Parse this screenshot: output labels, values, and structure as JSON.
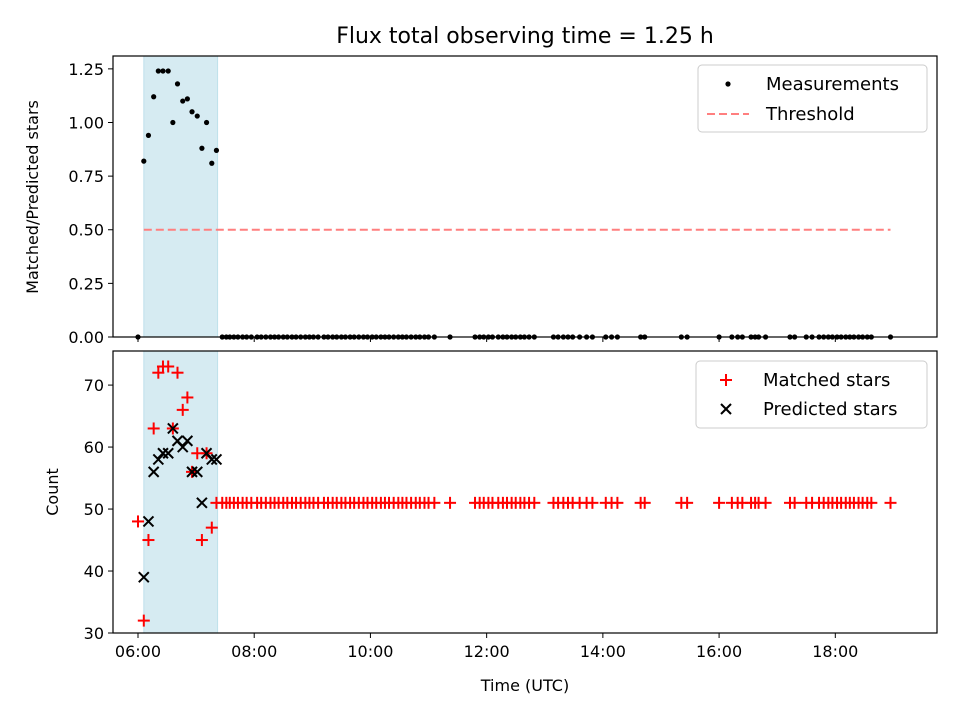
{
  "chart_data": [
    {
      "type": "scatter",
      "title": "Flux total observing time = 1.25 h",
      "xlabel": "",
      "ylabel": "Matched/Predicted stars",
      "xlim_hours": [
        5.57,
        19.75
      ],
      "ylim": [
        0.0,
        1.31
      ],
      "yticks": [
        "0.00",
        "0.25",
        "0.50",
        "0.75",
        "1.00",
        "1.25"
      ],
      "xtick_hours": [
        6,
        8,
        10,
        12,
        14,
        16,
        18
      ],
      "shaded_region_hours": [
        6.1,
        7.37
      ],
      "legend_position": "top-right",
      "series": [
        {
          "name": "Measurements",
          "marker": "dot",
          "color": "#000000",
          "x_hours": [
            6.0,
            6.1,
            6.18,
            6.27,
            6.35,
            6.43,
            6.52,
            6.6,
            6.68,
            6.77,
            6.85,
            6.93,
            7.02,
            7.1,
            7.18,
            7.27,
            7.35,
            7.45,
            7.52,
            7.58,
            7.65,
            7.72,
            7.8,
            7.87,
            7.95,
            8.05,
            8.12,
            8.2,
            8.28,
            8.35,
            8.42,
            8.5,
            8.57,
            8.65,
            8.72,
            8.8,
            8.88,
            8.95,
            9.02,
            9.1,
            9.2,
            9.27,
            9.35,
            9.42,
            9.5,
            9.57,
            9.65,
            9.72,
            9.8,
            9.88,
            9.95,
            10.03,
            10.1,
            10.18,
            10.25,
            10.32,
            10.4,
            10.48,
            10.55,
            10.62,
            10.7,
            10.78,
            10.85,
            10.93,
            11.0,
            11.1,
            11.37,
            11.8,
            11.88,
            11.95,
            12.03,
            12.1,
            12.2,
            12.28,
            12.35,
            12.43,
            12.5,
            12.58,
            12.65,
            12.73,
            12.82,
            13.15,
            13.23,
            13.32,
            13.4,
            13.48,
            13.6,
            13.72,
            13.82,
            14.05,
            14.15,
            14.25,
            14.65,
            14.72,
            15.35,
            15.45,
            16.0,
            16.22,
            16.32,
            16.4,
            16.55,
            16.62,
            16.68,
            16.8,
            17.22,
            17.3,
            17.5,
            17.6,
            17.72,
            17.8,
            17.88,
            17.95,
            18.03,
            18.1,
            18.18,
            18.25,
            18.32,
            18.4,
            18.47,
            18.55,
            18.62,
            18.95
          ],
          "y": [
            0.0,
            0.82,
            0.94,
            1.12,
            1.24,
            1.24,
            1.24,
            1.0,
            1.18,
            1.1,
            1.11,
            1.05,
            1.03,
            0.88,
            1.0,
            0.81,
            0.87,
            0,
            0,
            0,
            0,
            0,
            0,
            0,
            0,
            0,
            0,
            0,
            0,
            0,
            0,
            0,
            0,
            0,
            0,
            0,
            0,
            0,
            0,
            0,
            0,
            0,
            0,
            0,
            0,
            0,
            0,
            0,
            0,
            0,
            0,
            0,
            0,
            0,
            0,
            0,
            0,
            0,
            0,
            0,
            0,
            0,
            0,
            0,
            0,
            0,
            0,
            0,
            0,
            0,
            0,
            0,
            0,
            0,
            0,
            0,
            0,
            0,
            0,
            0,
            0,
            0,
            0,
            0,
            0,
            0,
            0,
            0,
            0,
            0,
            0,
            0,
            0,
            0,
            0,
            0,
            0,
            0,
            0,
            0,
            0,
            0,
            0,
            0,
            0,
            0,
            0,
            0,
            0,
            0,
            0,
            0,
            0,
            0,
            0,
            0,
            0,
            0,
            0,
            0,
            0,
            0
          ]
        },
        {
          "name": "Threshold",
          "marker": "dashed-line",
          "color": "#ff7f7f",
          "x_hours": [
            6.1,
            18.95
          ],
          "y": [
            0.5,
            0.5
          ]
        }
      ]
    },
    {
      "type": "scatter",
      "title": "",
      "xlabel": "Time (UTC)",
      "ylabel": "Count",
      "xlim_hours": [
        5.57,
        19.75
      ],
      "ylim": [
        30,
        75.5
      ],
      "yticks": [
        "30",
        "40",
        "50",
        "60",
        "70"
      ],
      "xtick_hours": [
        6,
        8,
        10,
        12,
        14,
        16,
        18
      ],
      "xtick_labels": [
        "06:00",
        "08:00",
        "10:00",
        "12:00",
        "14:00",
        "16:00",
        "18:00"
      ],
      "shaded_region_hours": [
        6.1,
        7.37
      ],
      "legend_position": "top-right",
      "series": [
        {
          "name": "Matched stars",
          "marker": "plus",
          "color": "#ff0000",
          "x_hours": [
            6.0,
            6.1,
            6.18,
            6.27,
            6.35,
            6.43,
            6.52,
            6.6,
            6.68,
            6.77,
            6.85,
            6.93,
            7.02,
            7.1,
            7.18,
            7.27,
            7.35,
            7.45,
            7.52,
            7.58,
            7.65,
            7.72,
            7.8,
            7.87,
            7.95,
            8.05,
            8.12,
            8.2,
            8.28,
            8.35,
            8.42,
            8.5,
            8.57,
            8.65,
            8.72,
            8.8,
            8.88,
            8.95,
            9.02,
            9.1,
            9.2,
            9.27,
            9.35,
            9.42,
            9.5,
            9.57,
            9.65,
            9.72,
            9.8,
            9.88,
            9.95,
            10.03,
            10.1,
            10.18,
            10.25,
            10.32,
            10.4,
            10.48,
            10.55,
            10.62,
            10.7,
            10.78,
            10.85,
            10.93,
            11.0,
            11.1,
            11.37,
            11.8,
            11.88,
            11.95,
            12.03,
            12.1,
            12.2,
            12.28,
            12.35,
            12.43,
            12.5,
            12.58,
            12.65,
            12.73,
            12.82,
            13.15,
            13.23,
            13.32,
            13.4,
            13.48,
            13.6,
            13.72,
            13.82,
            14.05,
            14.15,
            14.25,
            14.65,
            14.72,
            15.35,
            15.45,
            16.0,
            16.22,
            16.32,
            16.4,
            16.55,
            16.62,
            16.68,
            16.8,
            17.22,
            17.3,
            17.5,
            17.6,
            17.72,
            17.8,
            17.88,
            17.95,
            18.03,
            18.1,
            18.18,
            18.25,
            18.32,
            18.4,
            18.47,
            18.55,
            18.62,
            18.95
          ],
          "y": [
            48,
            32,
            45,
            63,
            72,
            73,
            73,
            63,
            72,
            66,
            68,
            56,
            59,
            45,
            59,
            47,
            51,
            51,
            51,
            51,
            51,
            51,
            51,
            51,
            51,
            51,
            51,
            51,
            51,
            51,
            51,
            51,
            51,
            51,
            51,
            51,
            51,
            51,
            51,
            51,
            51,
            51,
            51,
            51,
            51,
            51,
            51,
            51,
            51,
            51,
            51,
            51,
            51,
            51,
            51,
            51,
            51,
            51,
            51,
            51,
            51,
            51,
            51,
            51,
            51,
            51,
            51,
            51,
            51,
            51,
            51,
            51,
            51,
            51,
            51,
            51,
            51,
            51,
            51,
            51,
            51,
            51,
            51,
            51,
            51,
            51,
            51,
            51,
            51,
            51,
            51,
            51,
            51,
            51,
            51,
            51,
            51,
            51,
            51,
            51,
            51,
            51,
            51,
            51,
            51,
            51,
            51,
            51,
            51,
            51,
            51,
            51,
            51,
            51,
            51,
            51,
            51,
            51,
            51,
            51,
            51,
            51
          ]
        },
        {
          "name": "Predicted stars",
          "marker": "x",
          "color": "#000000",
          "x_hours": [
            6.1,
            6.18,
            6.27,
            6.35,
            6.43,
            6.52,
            6.6,
            6.68,
            6.77,
            6.85,
            6.93,
            7.02,
            7.1,
            7.18,
            7.27,
            7.35
          ],
          "y": [
            39,
            48,
            56,
            58,
            59,
            59,
            63,
            61,
            60,
            61,
            56,
            56,
            51,
            59,
            58,
            58
          ]
        }
      ]
    }
  ]
}
